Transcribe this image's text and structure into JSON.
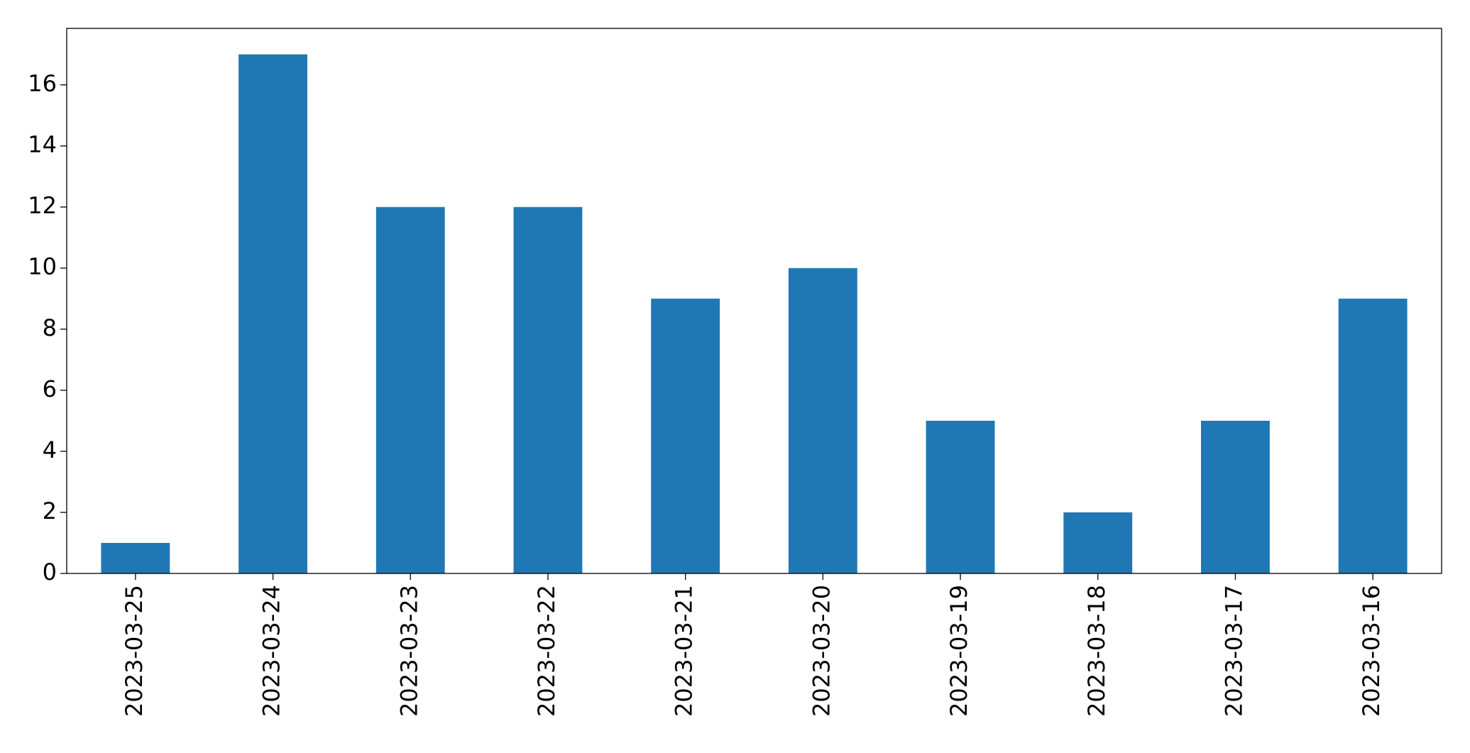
{
  "chart_data": {
    "type": "bar",
    "categories": [
      "2023-03-25",
      "2023-03-24",
      "2023-03-23",
      "2023-03-22",
      "2023-03-21",
      "2023-03-20",
      "2023-03-19",
      "2023-03-18",
      "2023-03-17",
      "2023-03-16"
    ],
    "values": [
      1,
      17,
      12,
      12,
      9,
      10,
      5,
      2,
      5,
      9
    ],
    "color": "#1f77b4",
    "ylim": [
      0,
      17.85
    ],
    "yticks": [
      0,
      2,
      4,
      6,
      8,
      10,
      12,
      14,
      16
    ],
    "grid": false
  }
}
